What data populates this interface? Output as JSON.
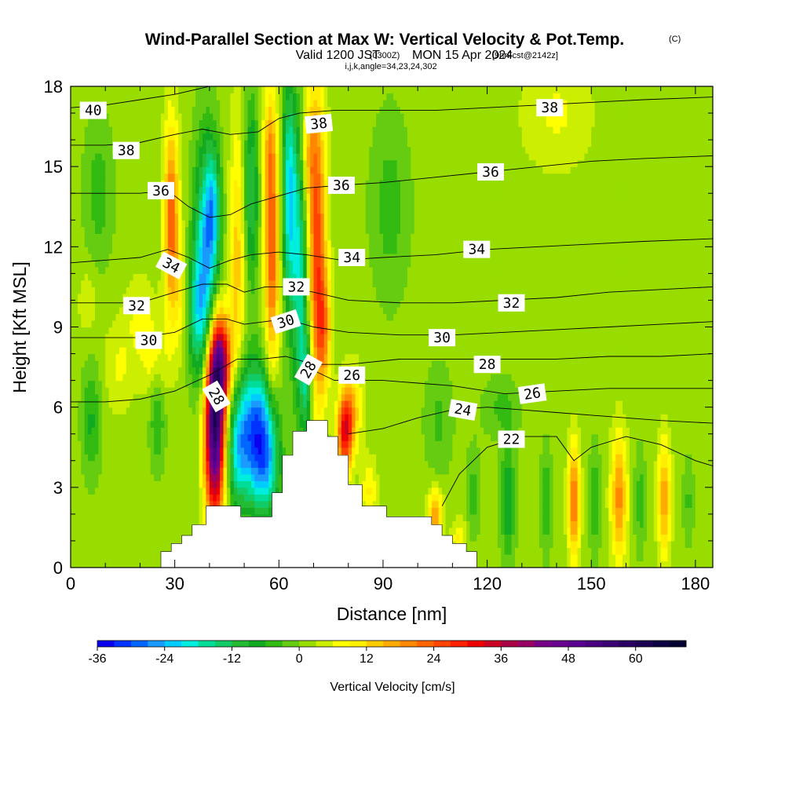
{
  "chart_data": {
    "type": "heatmap",
    "title": "Wind-Parallel Section at Max W: Vertical Velocity & Pot.Temp.",
    "title_mark": "(C)",
    "subtitle": {
      "valid": "Valid 1200 JST",
      "utc": "(0300Z)",
      "date": "MON 15 Apr 2024",
      "forecast": "[9hrFcst@2142z]"
    },
    "grid_info": "i,j,k,angle=34,23,24,302",
    "xlabel": "Distance [nm]",
    "ylabel": "Height [Kft MSL]",
    "xlim": [
      0,
      185
    ],
    "ylim": [
      0,
      18
    ],
    "x_ticks": [
      "0",
      "30",
      "60",
      "90",
      "120",
      "150",
      "180"
    ],
    "x_tick_values": [
      0,
      30,
      60,
      90,
      120,
      150,
      180
    ],
    "y_ticks": [
      "0",
      "3",
      "6",
      "9",
      "12",
      "15",
      "18"
    ],
    "y_tick_values": [
      0,
      3,
      6,
      9,
      12,
      15,
      18
    ],
    "colorbar": {
      "label": "Vertical Velocity [cm/s]",
      "min": -36,
      "max": 69,
      "step": 3,
      "tick_labels": [
        "-36",
        "-24",
        "-12",
        "0",
        "12",
        "24",
        "36",
        "48",
        "60"
      ],
      "tick_values": [
        -36,
        -24,
        -12,
        0,
        12,
        24,
        36,
        48,
        60
      ]
    },
    "terrain": [
      [
        26,
        0.3
      ],
      [
        26,
        0.6
      ],
      [
        29,
        0.6
      ],
      [
        29,
        0.9
      ],
      [
        32,
        0.9
      ],
      [
        32,
        1.2
      ],
      [
        35,
        1.2
      ],
      [
        35,
        1.6
      ],
      [
        39,
        1.6
      ],
      [
        39,
        2.3
      ],
      [
        49,
        2.3
      ],
      [
        49,
        1.9
      ],
      [
        58,
        1.9
      ],
      [
        58,
        2.8
      ],
      [
        61,
        2.8
      ],
      [
        61,
        4.2
      ],
      [
        64,
        4.2
      ],
      [
        64,
        5.1
      ],
      [
        68,
        5.1
      ],
      [
        68,
        5.5
      ],
      [
        74,
        5.5
      ],
      [
        74,
        4.9
      ],
      [
        77,
        4.9
      ],
      [
        77,
        4.2
      ],
      [
        80,
        4.2
      ],
      [
        80,
        3.1
      ],
      [
        84,
        3.1
      ],
      [
        84,
        2.3
      ],
      [
        91,
        2.3
      ],
      [
        91,
        1.9
      ],
      [
        104,
        1.9
      ],
      [
        104,
        1.6
      ],
      [
        107,
        1.6
      ],
      [
        107,
        1.2
      ],
      [
        110,
        1.2
      ],
      [
        110,
        0.9
      ],
      [
        114,
        0.9
      ],
      [
        114,
        0.6
      ],
      [
        117,
        0.6
      ],
      [
        117,
        0.3
      ]
    ],
    "velocity_features": [
      {
        "x": 41.5,
        "y": 5.4,
        "sx": 2.0,
        "sy": 2.4,
        "w": 58
      },
      {
        "x": 43.5,
        "y": 7.7,
        "sx": 2.0,
        "sy": 1.2,
        "w": 30
      },
      {
        "x": 53,
        "y": 5.0,
        "sx": 3.5,
        "sy": 1.8,
        "w": -30
      },
      {
        "x": 48,
        "y": 4.5,
        "sx": 2.0,
        "sy": 1.6,
        "w": -16
      },
      {
        "x": 57,
        "y": 4.0,
        "sx": 2.5,
        "sy": 1.5,
        "w": -16
      },
      {
        "x": 39,
        "y": 11.5,
        "sx": 2.5,
        "sy": 3.0,
        "w": -24
      },
      {
        "x": 41,
        "y": 13.5,
        "sx": 1.5,
        "sy": 1.5,
        "w": -14
      },
      {
        "x": 36,
        "y": 9.5,
        "sx": 2.5,
        "sy": 1.5,
        "w": -12
      },
      {
        "x": 29,
        "y": 13,
        "sx": 1.5,
        "sy": 2.5,
        "w": 22
      },
      {
        "x": 32,
        "y": 10,
        "sx": 1.5,
        "sy": 1.5,
        "w": 8
      },
      {
        "x": 48,
        "y": 11.5,
        "sx": 1.6,
        "sy": 3.5,
        "w": 12
      },
      {
        "x": 52,
        "y": 14,
        "sx": 1.5,
        "sy": 2.5,
        "w": -14
      },
      {
        "x": 58,
        "y": 12,
        "sx": 1.5,
        "sy": 3.5,
        "w": 22
      },
      {
        "x": 57,
        "y": 15.5,
        "sx": 1.2,
        "sy": 1.5,
        "w": 8
      },
      {
        "x": 63,
        "y": 14,
        "sx": 1.5,
        "sy": 3.0,
        "w": -22
      },
      {
        "x": 66,
        "y": 11,
        "sx": 1.6,
        "sy": 3.5,
        "w": -18
      },
      {
        "x": 68,
        "y": 7,
        "sx": 1.2,
        "sy": 1.5,
        "w": -15
      },
      {
        "x": 71,
        "y": 12,
        "sx": 1.8,
        "sy": 4.0,
        "w": 24
      },
      {
        "x": 68.5,
        "y": 15.5,
        "sx": 1.5,
        "sy": 1.5,
        "w": 10
      },
      {
        "x": 73,
        "y": 9,
        "sx": 1.5,
        "sy": 1.5,
        "w": 14
      },
      {
        "x": 79,
        "y": 5.0,
        "sx": 1.6,
        "sy": 1.0,
        "w": 28
      },
      {
        "x": 81,
        "y": 6.0,
        "sx": 2.0,
        "sy": 1.0,
        "w": 12
      },
      {
        "x": 105,
        "y": 1.9,
        "sx": 1.5,
        "sy": 0.7,
        "w": 16
      },
      {
        "x": 112,
        "y": 1.1,
        "sx": 1.5,
        "sy": 0.5,
        "w": 8
      },
      {
        "x": 86,
        "y": 2.9,
        "sx": 1.5,
        "sy": 0.8,
        "w": 8
      },
      {
        "x": 6,
        "y": 5.5,
        "sx": 2.0,
        "sy": 1.5,
        "w": -8
      },
      {
        "x": 25,
        "y": 5.5,
        "sx": 1.5,
        "sy": 1.3,
        "w": -8
      },
      {
        "x": 24,
        "y": 7.8,
        "sx": 3.0,
        "sy": 1.0,
        "w": 6
      },
      {
        "x": 20,
        "y": 9.5,
        "sx": 3.0,
        "sy": 1.0,
        "w": 5
      },
      {
        "x": 14,
        "y": 7.5,
        "sx": 3.0,
        "sy": 1.2,
        "w": 5
      },
      {
        "x": 8,
        "y": 14,
        "sx": 3.0,
        "sy": 2.0,
        "w": -6
      },
      {
        "x": 5,
        "y": 10,
        "sx": 2.0,
        "sy": 1.0,
        "w": 4
      },
      {
        "x": 92,
        "y": 13.5,
        "sx": 4.0,
        "sy": 2.5,
        "w": -6
      },
      {
        "x": 140,
        "y": 17,
        "sx": 7.0,
        "sy": 1.5,
        "w": 5
      },
      {
        "x": 124,
        "y": 6.0,
        "sx": 4.0,
        "sy": 0.8,
        "w": -5
      },
      {
        "x": 106,
        "y": 5.5,
        "sx": 3.0,
        "sy": 1.5,
        "w": -5
      },
      {
        "x": 126,
        "y": 2.5,
        "sx": 1.5,
        "sy": 1.5,
        "w": -11
      },
      {
        "x": 116,
        "y": 2.8,
        "sx": 1.4,
        "sy": 1.2,
        "w": -6
      },
      {
        "x": 137,
        "y": 2.5,
        "sx": 1.2,
        "sy": 1.4,
        "w": -7
      },
      {
        "x": 145,
        "y": 2.5,
        "sx": 1.2,
        "sy": 1.5,
        "w": 20
      },
      {
        "x": 151,
        "y": 2.5,
        "sx": 1.2,
        "sy": 1.4,
        "w": -7
      },
      {
        "x": 158,
        "y": 2.6,
        "sx": 1.6,
        "sy": 1.6,
        "w": 18
      },
      {
        "x": 164,
        "y": 2.5,
        "sx": 1.2,
        "sy": 1.4,
        "w": -6
      },
      {
        "x": 171,
        "y": 2.6,
        "sx": 1.3,
        "sy": 1.5,
        "w": 16
      },
      {
        "x": 178,
        "y": 2.5,
        "sx": 1.2,
        "sy": 1.2,
        "w": -5
      }
    ],
    "theta_contours": [
      {
        "level": 22,
        "line": [
          [
            107,
            2.3
          ],
          [
            112,
            3.5
          ],
          [
            120,
            4.5
          ],
          [
            130,
            4.9
          ],
          [
            140,
            4.9
          ],
          [
            145,
            4.0
          ],
          [
            150,
            4.5
          ],
          [
            160,
            4.9
          ],
          [
            170,
            4.6
          ],
          [
            180,
            4.0
          ],
          [
            185,
            3.8
          ]
        ]
      },
      {
        "level": 24,
        "line": [
          [
            80,
            5.0
          ],
          [
            90,
            5.2
          ],
          [
            100,
            5.6
          ],
          [
            110,
            5.9
          ],
          [
            120,
            6.0
          ],
          [
            130,
            5.9
          ],
          [
            140,
            5.8
          ],
          [
            150,
            5.7
          ],
          [
            160,
            5.6
          ],
          [
            170,
            5.5
          ],
          [
            185,
            5.4
          ]
        ]
      },
      {
        "level": 26,
        "line": [
          [
            68,
            7.5
          ],
          [
            76,
            7.0
          ],
          [
            82,
            7.0
          ],
          [
            90,
            7.0
          ],
          [
            100,
            6.9
          ],
          [
            110,
            6.8
          ],
          [
            125,
            6.5
          ],
          [
            140,
            6.6
          ],
          [
            155,
            6.7
          ],
          [
            170,
            6.7
          ],
          [
            185,
            6.7
          ]
        ]
      },
      {
        "level": 28,
        "line": [
          [
            0,
            6.2
          ],
          [
            10,
            6.2
          ],
          [
            20,
            6.3
          ],
          [
            30,
            6.6
          ],
          [
            40,
            7.2
          ],
          [
            48,
            7.8
          ],
          [
            55,
            7.8
          ],
          [
            62,
            7.9
          ],
          [
            70,
            7.6
          ],
          [
            80,
            7.6
          ],
          [
            95,
            7.8
          ],
          [
            110,
            7.8
          ],
          [
            125,
            7.8
          ],
          [
            140,
            7.8
          ],
          [
            155,
            7.9
          ],
          [
            170,
            7.9
          ],
          [
            185,
            8.0
          ]
        ]
      },
      {
        "level": 30,
        "line": [
          [
            0,
            8.6
          ],
          [
            10,
            8.6
          ],
          [
            20,
            8.6
          ],
          [
            30,
            8.8
          ],
          [
            38,
            9.3
          ],
          [
            45,
            9.3
          ],
          [
            50,
            9.1
          ],
          [
            56,
            9.2
          ],
          [
            62,
            9.3
          ],
          [
            70,
            9.0
          ],
          [
            80,
            8.8
          ],
          [
            95,
            8.7
          ],
          [
            110,
            8.7
          ],
          [
            125,
            8.8
          ],
          [
            140,
            8.9
          ],
          [
            155,
            9.0
          ],
          [
            170,
            9.1
          ],
          [
            185,
            9.2
          ]
        ]
      },
      {
        "level": 32,
        "line": [
          [
            0,
            9.9
          ],
          [
            10,
            9.9
          ],
          [
            20,
            9.9
          ],
          [
            30,
            10.3
          ],
          [
            38,
            10.6
          ],
          [
            45,
            10.6
          ],
          [
            50,
            10.3
          ],
          [
            56,
            10.5
          ],
          [
            62,
            10.5
          ],
          [
            70,
            10.3
          ],
          [
            80,
            10.0
          ],
          [
            95,
            9.9
          ],
          [
            110,
            9.9
          ],
          [
            125,
            10.0
          ],
          [
            140,
            10.1
          ],
          [
            155,
            10.3
          ],
          [
            170,
            10.4
          ],
          [
            185,
            10.5
          ]
        ]
      },
      {
        "level": 34,
        "line": [
          [
            0,
            11.4
          ],
          [
            10,
            11.5
          ],
          [
            20,
            11.6
          ],
          [
            28,
            11.9
          ],
          [
            34,
            11.6
          ],
          [
            40,
            11.2
          ],
          [
            46,
            11.5
          ],
          [
            52,
            11.7
          ],
          [
            60,
            11.8
          ],
          [
            68,
            11.7
          ],
          [
            78,
            11.5
          ],
          [
            90,
            11.6
          ],
          [
            105,
            11.7
          ],
          [
            120,
            11.9
          ],
          [
            135,
            12.0
          ],
          [
            150,
            12.1
          ],
          [
            165,
            12.2
          ],
          [
            185,
            12.3
          ]
        ]
      },
      {
        "level": 36,
        "line": [
          [
            0,
            14.0
          ],
          [
            10,
            14.0
          ],
          [
            20,
            14.0
          ],
          [
            28,
            14.1
          ],
          [
            34,
            13.5
          ],
          [
            40,
            13.1
          ],
          [
            46,
            13.2
          ],
          [
            52,
            13.6
          ],
          [
            60,
            13.9
          ],
          [
            68,
            14.2
          ],
          [
            78,
            14.3
          ],
          [
            90,
            14.4
          ],
          [
            105,
            14.6
          ],
          [
            120,
            14.8
          ],
          [
            135,
            15.0
          ],
          [
            150,
            15.2
          ],
          [
            165,
            15.3
          ],
          [
            185,
            15.4
          ]
        ]
      },
      {
        "level": 38,
        "line": [
          [
            0,
            15.8
          ],
          [
            10,
            15.8
          ],
          [
            20,
            15.9
          ],
          [
            30,
            16.2
          ],
          [
            38,
            16.4
          ],
          [
            46,
            16.2
          ],
          [
            54,
            16.3
          ],
          [
            60,
            16.8
          ],
          [
            66,
            17.0
          ],
          [
            76,
            17.1
          ],
          [
            90,
            17.1
          ],
          [
            105,
            17.1
          ],
          [
            120,
            17.2
          ],
          [
            135,
            17.3
          ],
          [
            150,
            17.4
          ],
          [
            165,
            17.5
          ],
          [
            185,
            17.6
          ]
        ]
      },
      {
        "level": 40,
        "line": [
          [
            0,
            17.2
          ],
          [
            10,
            17.3
          ],
          [
            20,
            17.5
          ],
          [
            30,
            17.7
          ],
          [
            40,
            18.0
          ]
        ]
      }
    ],
    "theta_labels": [
      {
        "text": "40",
        "x": 6.5,
        "y": 17.1,
        "angle": 0
      },
      {
        "text": "38",
        "x": 16,
        "y": 15.6,
        "angle": 0
      },
      {
        "text": "38",
        "x": 71.5,
        "y": 16.6,
        "angle": -6
      },
      {
        "text": "38",
        "x": 138,
        "y": 17.2,
        "angle": 0
      },
      {
        "text": "36",
        "x": 26,
        "y": 14.1,
        "angle": 0
      },
      {
        "text": "36",
        "x": 78,
        "y": 14.3,
        "angle": 0
      },
      {
        "text": "36",
        "x": 121,
        "y": 14.8,
        "angle": 0
      },
      {
        "text": "34",
        "x": 29,
        "y": 11.3,
        "angle": 28
      },
      {
        "text": "34",
        "x": 81,
        "y": 11.6,
        "angle": 0
      },
      {
        "text": "34",
        "x": 117,
        "y": 11.9,
        "angle": 0
      },
      {
        "text": "32",
        "x": 19,
        "y": 9.8,
        "angle": 0
      },
      {
        "text": "32",
        "x": 65,
        "y": 10.5,
        "angle": 0
      },
      {
        "text": "32",
        "x": 127,
        "y": 9.9,
        "angle": 0
      },
      {
        "text": "30",
        "x": 22.5,
        "y": 8.5,
        "angle": 0
      },
      {
        "text": "30",
        "x": 62,
        "y": 9.2,
        "angle": -18
      },
      {
        "text": "30",
        "x": 107,
        "y": 8.6,
        "angle": 0
      },
      {
        "text": "28",
        "x": 42,
        "y": 6.4,
        "angle": 60
      },
      {
        "text": "28",
        "x": 68.5,
        "y": 7.4,
        "angle": -60
      },
      {
        "text": "28",
        "x": 120,
        "y": 7.6,
        "angle": 0
      },
      {
        "text": "26",
        "x": 81,
        "y": 7.2,
        "angle": 0
      },
      {
        "text": "26",
        "x": 133,
        "y": 6.5,
        "angle": -8
      },
      {
        "text": "24",
        "x": 113,
        "y": 5.9,
        "angle": 10
      },
      {
        "text": "22",
        "x": 127,
        "y": 4.8,
        "angle": 0
      }
    ]
  }
}
